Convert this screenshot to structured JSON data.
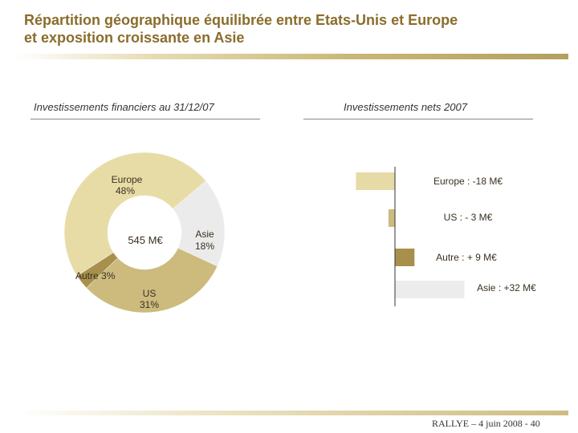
{
  "page": {
    "title_line1": "Répartition géographique équilibrée entre Etats-Unis et Europe",
    "title_line2": "et exposition croissante en Asie",
    "footer": "RALLYE – 4 juin 2008 -  40"
  },
  "colors": {
    "europe": "#e8dca6",
    "asie": "#ebebeb",
    "us": "#cdbb7e",
    "autre": "#a8904c",
    "bar_europe": "#e6daa6",
    "bar_us": "#cdbb7e",
    "bar_autre": "#a8904c",
    "bar_asie": "#ececec"
  },
  "chart_data": [
    {
      "type": "pie",
      "title": "Investissements financiers au 31/12/07",
      "center_label": "545 M€",
      "slices": [
        {
          "name": "Europe",
          "pct_label": "48%",
          "value": 48
        },
        {
          "name": "Asie",
          "pct_label": "18%",
          "value": 18
        },
        {
          "name": "US",
          "pct_label": "31%",
          "value": 31
        },
        {
          "name": "Autre",
          "pct_label": "3%",
          "value": 3
        }
      ]
    },
    {
      "type": "bar",
      "orientation": "horizontal",
      "title": "Investissements nets 2007",
      "unit": "M€",
      "categories": [
        "Europe",
        "US",
        "Autre",
        "Asie"
      ],
      "values": [
        -18,
        -3,
        9,
        32
      ],
      "labels": [
        "Europe : -18 M€",
        "US : - 3 M€",
        "Autre : + 9 M€",
        "Asie : +32 M€"
      ]
    }
  ]
}
